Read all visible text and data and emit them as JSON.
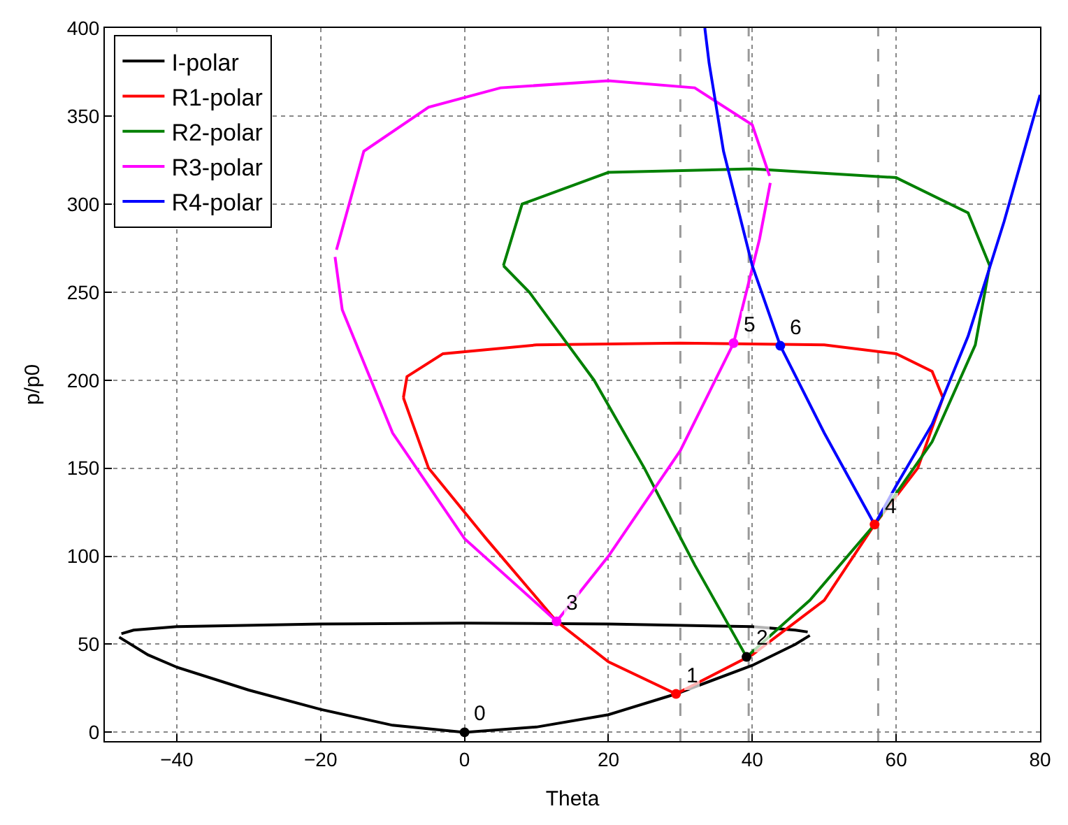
{
  "chart_data": {
    "type": "line",
    "xlabel": "Theta",
    "ylabel": "p/p0",
    "xlim": [
      -50,
      80
    ],
    "ylim": [
      -5,
      400
    ],
    "xticks": [
      {
        "value": -40,
        "label": "−40"
      },
      {
        "value": -20,
        "label": "−20"
      },
      0,
      20,
      40,
      60,
      80
    ],
    "yticks": [
      0,
      50,
      100,
      150,
      200,
      250,
      300,
      350,
      400
    ],
    "grid": true,
    "legend": "top left",
    "marker": "none",
    "line_style": "solid",
    "series": [
      {
        "name": "I-polar",
        "color": "#000000",
        "x": [
          -48,
          -44,
          -40,
          -30,
          -20,
          -10,
          0,
          10,
          20,
          29.4,
          40,
          46,
          48
        ],
        "values": [
          54,
          44,
          37,
          24,
          13,
          4,
          0,
          3,
          10,
          21.8,
          38,
          50,
          55
        ]
      },
      {
        "color": "#000000",
        "x": [
          -47.7,
          -46,
          -40,
          -20,
          0,
          20,
          40,
          46,
          47.7
        ],
        "values": [
          56,
          58,
          60,
          61.5,
          62,
          61.5,
          60,
          58,
          57
        ]
      },
      {
        "name": "R1-polar",
        "color": "#ff0000",
        "x": [
          -8.5,
          -5,
          3,
          12.8,
          20,
          29.4,
          40,
          50,
          57,
          63,
          66.5
        ],
        "values": [
          190,
          150,
          110,
          63,
          40,
          21.8,
          44,
          75,
          118,
          150,
          190
        ]
      },
      {
        "color": "#ff0000",
        "x": [
          -8.5,
          -8,
          -3,
          10,
          30,
          50,
          60,
          65,
          66.5
        ],
        "values": [
          190,
          202,
          215,
          220,
          221,
          220,
          215,
          205,
          190
        ]
      },
      {
        "name": "R2-polar",
        "color": "#008000",
        "x": [
          5.4,
          9,
          18,
          25,
          32,
          39.2,
          48,
          57,
          65,
          71,
          73
        ],
        "values": [
          265,
          250,
          200,
          150,
          95,
          42.8,
          75,
          118,
          165,
          220,
          265
        ]
      },
      {
        "color": "#008000",
        "x": [
          5.4,
          8,
          20,
          40,
          60,
          70,
          73
        ],
        "values": [
          265,
          300,
          318,
          320,
          315,
          295,
          265
        ]
      },
      {
        "name": "R3-polar",
        "color": "#ff00ff",
        "x": [
          -18,
          -17,
          -10,
          0,
          12.8,
          20,
          30,
          37.4,
          41,
          42.5
        ],
        "values": [
          270,
          240,
          170,
          110,
          63,
          100,
          160,
          221,
          280,
          312
        ]
      },
      {
        "color": "#ff00ff",
        "x": [
          -17.8,
          -14,
          -5,
          5,
          20,
          32,
          40,
          42.4
        ],
        "values": [
          274,
          330,
          355,
          366,
          370,
          366,
          345,
          316
        ]
      },
      {
        "name": "R4-polar",
        "color": "#0000ff",
        "x": [
          33.4,
          34,
          36,
          40,
          43.9,
          50,
          57,
          60,
          65,
          70,
          75,
          80
        ],
        "values": [
          400,
          380,
          330,
          265,
          219.5,
          170,
          118,
          140,
          175,
          225,
          290,
          362
        ]
      },
      {
        "type": "scatter",
        "marker": "circle",
        "x": [
          0,
          29.4,
          39.2,
          12.8,
          57,
          37.4,
          43.9
        ],
        "values": [
          0,
          21.8,
          42.8,
          63,
          118,
          221,
          219.5
        ],
        "colors": [
          "#000000",
          "#ff0000",
          "#000000",
          "#ff00ff",
          "#ff0000",
          "#ff00ff",
          "#0000ff"
        ]
      }
    ],
    "ref_lines": [
      {
        "axis": "x",
        "value": 30,
        "color": "#999999",
        "line_style": "dashed"
      },
      {
        "axis": "x",
        "value": 39.5,
        "color": "#999999",
        "line_style": "dashed"
      },
      {
        "axis": "x",
        "value": 57.5,
        "color": "#999999",
        "line_style": "dashed"
      }
    ],
    "annotations": [
      {
        "text": "0",
        "x": 0,
        "y": 0
      },
      {
        "text": "1",
        "x": 29.4,
        "y": 21.8
      },
      {
        "text": "2",
        "x": 39.2,
        "y": 42.8
      },
      {
        "text": "3",
        "x": 12.8,
        "y": 63
      },
      {
        "text": "4",
        "x": 57,
        "y": 118
      },
      {
        "text": "5",
        "x": 37.4,
        "y": 221
      },
      {
        "text": "6",
        "x": 43.9,
        "y": 219.5
      }
    ]
  }
}
